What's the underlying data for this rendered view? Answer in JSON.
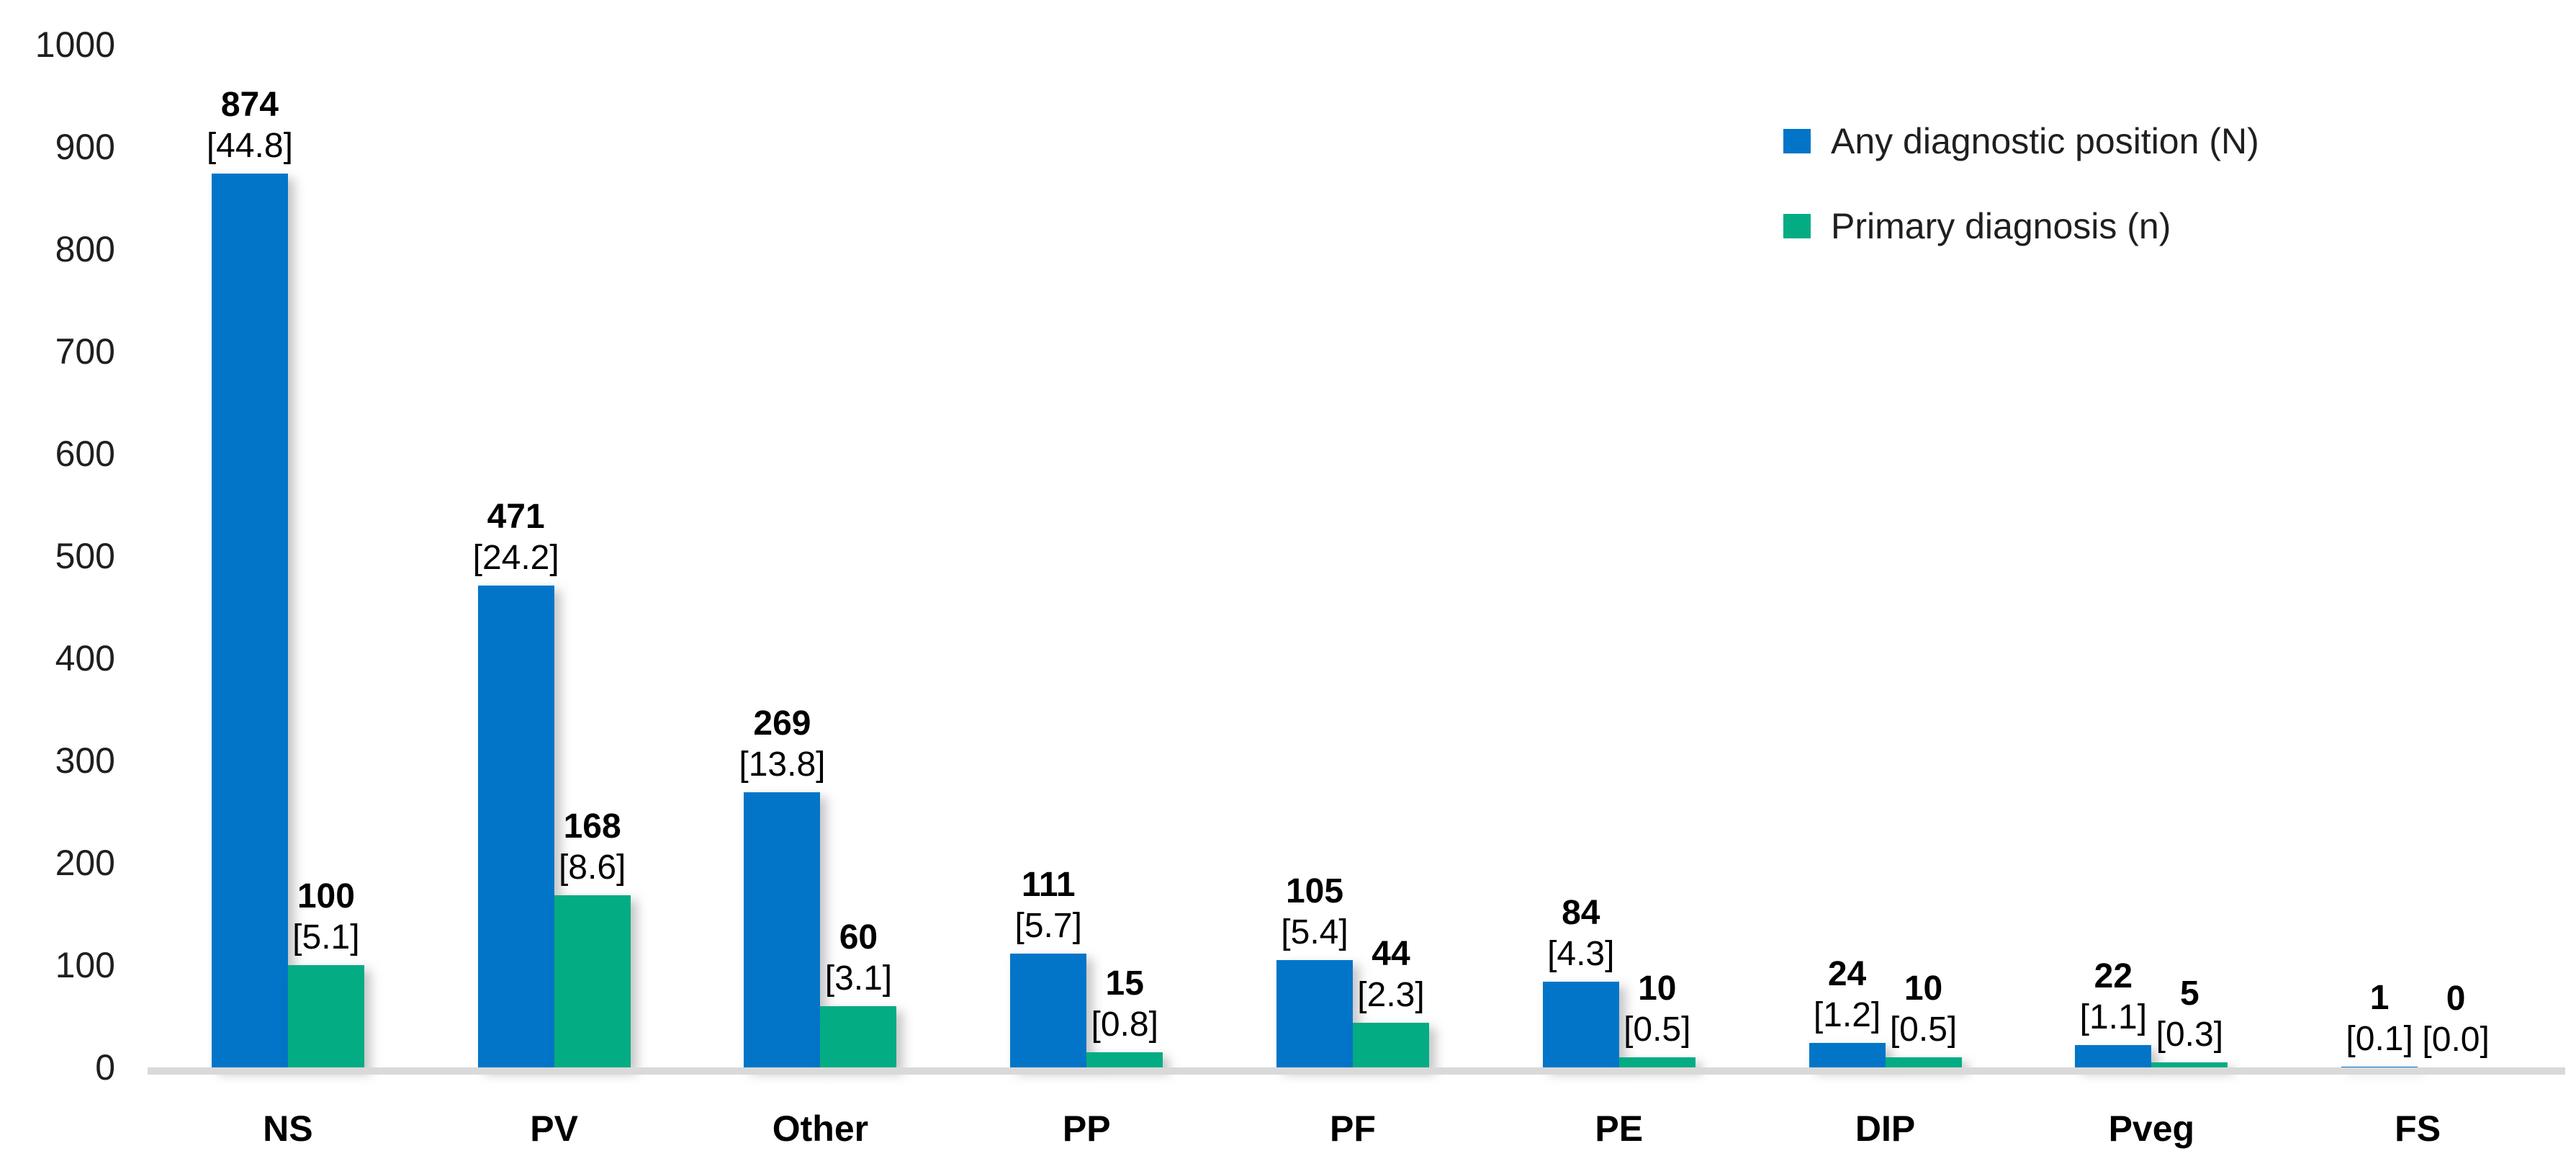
{
  "chart_data": {
    "type": "bar",
    "title": "",
    "xlabel": "",
    "ylabel": "",
    "categories": [
      "NS",
      "PV",
      "Other",
      "PP",
      "PF",
      "PE",
      "DIP",
      "Pveg",
      "FS"
    ],
    "series": [
      {
        "name": "Any diagnostic position (N)",
        "color": "#0375C8",
        "values": [
          874,
          471,
          269,
          111,
          105,
          84,
          24,
          22,
          1
        ],
        "percent_labels": [
          "[44.8]",
          "[24.2]",
          "[13.8]",
          "[5.7]",
          "[5.4]",
          "[4.3]",
          "[1.2]",
          "[1.1]",
          "[0.1]"
        ]
      },
      {
        "name": "Primary diagnosis (n)",
        "color": "#04AC83",
        "values": [
          100,
          168,
          60,
          15,
          44,
          10,
          10,
          5,
          0
        ],
        "percent_labels": [
          "[5.1]",
          "[8.6]",
          "[3.1]",
          "[0.8]",
          "[2.3]",
          "[0.5]",
          "[0.5]",
          "[0.3]",
          "[0.0]"
        ]
      }
    ],
    "ylim": [
      0,
      1000
    ],
    "y_ticks": [
      0,
      100,
      200,
      300,
      400,
      500,
      600,
      700,
      800,
      900,
      1000
    ],
    "grid": false,
    "legend_position": "top-right",
    "baseline_color": "#d9d9d9"
  }
}
